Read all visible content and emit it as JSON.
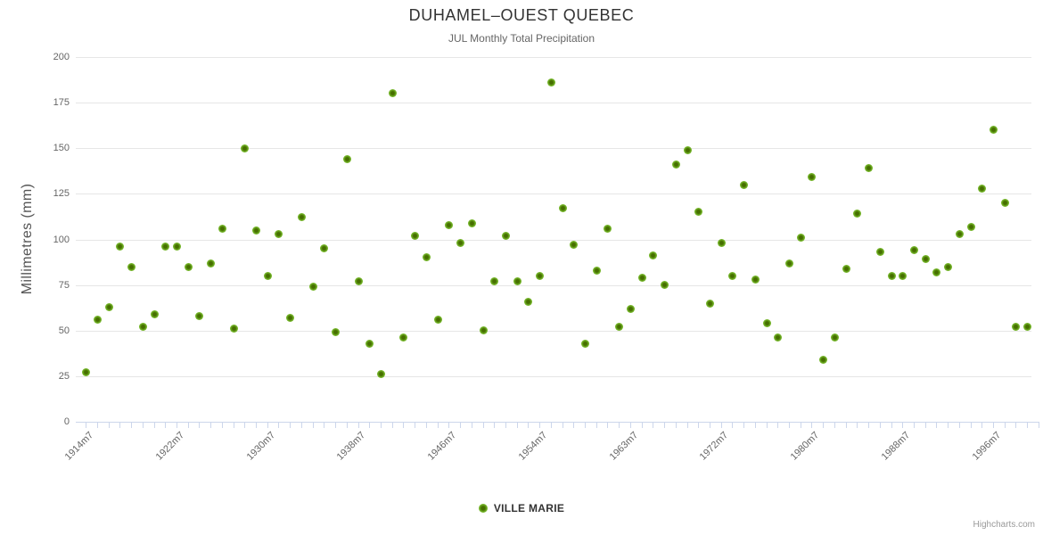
{
  "chart": {
    "title": "DUHAMEL–OUEST QUEBEC",
    "subtitle": "JUL Monthly Total Precipitation",
    "credits": "Highcharts.com"
  },
  "legend": {
    "series_label": "VILLE MARIE"
  },
  "colors": {
    "marker_outer": "#77b72c",
    "marker_mid": "#5d9414",
    "marker_core": "#466f00",
    "grid": "#e6e6e6",
    "axis_line": "#ccd6eb",
    "title_text": "#333333",
    "subtitle_text": "#666666",
    "axis_label_text": "#666666",
    "legend_text": "#333333",
    "credits_text": "#999999"
  },
  "chart_data": {
    "type": "scatter",
    "title": "DUHAMEL–OUEST QUEBEC",
    "subtitle": "JUL Monthly Total Precipitation",
    "ylabel": "Millimetres (mm)",
    "ylim": [
      0,
      200
    ],
    "y_ticks": [
      0,
      25,
      50,
      75,
      100,
      125,
      150,
      175,
      200
    ],
    "grid": "horizontal-only",
    "legend_position": "bottom-center",
    "x_axis": {
      "category_count": 84,
      "first_category_label": "1914m7",
      "tick_labels": [
        "1914m7",
        "1922m7",
        "1930m7",
        "1938m7",
        "1946m7",
        "1954m7",
        "1963m7",
        "1972m7",
        "1980m7",
        "1988m7",
        "1996m7"
      ],
      "tick_label_category_indices": [
        0,
        8,
        16,
        24,
        32,
        40,
        48,
        56,
        64,
        72,
        80
      ]
    },
    "series": [
      {
        "name": "VILLE MARIE",
        "marker_color": "#77b72c",
        "values_mm": [
          27,
          56,
          63,
          96,
          85,
          52,
          59,
          96,
          96,
          85,
          58,
          87,
          106,
          51,
          150,
          105,
          80,
          103,
          57,
          112,
          74,
          95,
          49,
          144,
          77,
          43,
          26,
          180,
          46,
          102,
          90,
          56,
          108,
          98,
          109,
          50,
          77,
          102,
          77,
          66,
          80,
          186,
          117,
          97,
          43,
          83,
          106,
          52,
          62,
          79,
          91,
          75,
          141,
          149,
          115,
          65,
          98,
          80,
          130,
          78,
          54,
          46,
          87,
          101,
          134,
          34,
          46,
          84,
          114,
          139,
          93,
          80,
          80,
          94,
          89,
          82,
          85,
          103,
          107,
          128,
          160,
          120,
          52,
          52
        ]
      }
    ]
  }
}
